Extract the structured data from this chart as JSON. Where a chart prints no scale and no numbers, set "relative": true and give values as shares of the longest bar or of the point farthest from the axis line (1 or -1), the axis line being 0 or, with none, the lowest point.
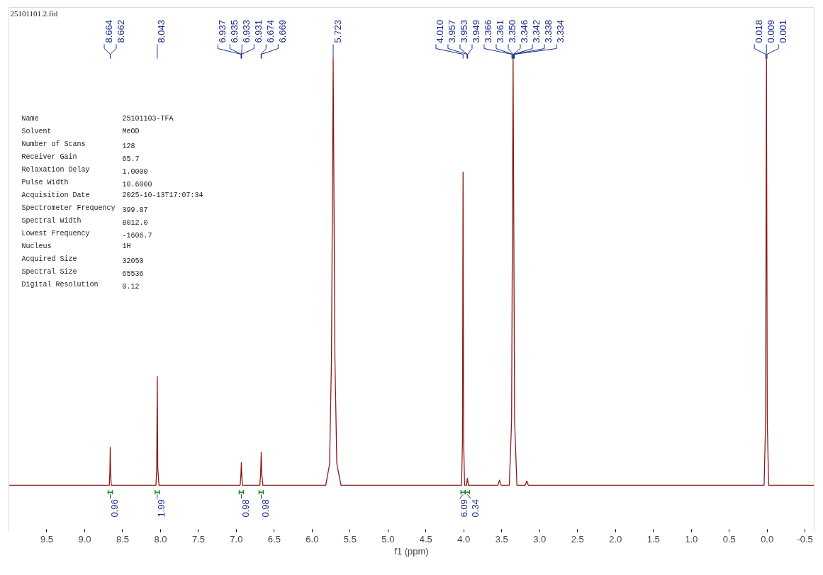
{
  "chart_data": {
    "type": "line",
    "relative": true,
    "xlabel": "f1 (ppm)",
    "xlim": [
      10.0,
      -0.62
    ],
    "xticks": [
      {
        "value": 9.5,
        "label": "9.5"
      },
      {
        "value": 9.0,
        "label": "9.0"
      },
      {
        "value": 8.5,
        "label": "8.5"
      },
      {
        "value": 8.0,
        "label": "8.0"
      },
      {
        "value": 7.5,
        "label": "7.5"
      },
      {
        "value": 7.0,
        "label": "7.0"
      },
      {
        "value": 6.5,
        "label": "6.5"
      },
      {
        "value": 6.0,
        "label": "6.0"
      },
      {
        "value": 5.5,
        "label": "5.5"
      },
      {
        "value": 5.0,
        "label": "5.0"
      },
      {
        "value": 4.5,
        "label": "4.5"
      },
      {
        "value": 4.0,
        "label": "4.0"
      },
      {
        "value": 3.5,
        "label": "3.5"
      },
      {
        "value": 3.0,
        "label": "3.0"
      },
      {
        "value": 2.5,
        "label": "2.5"
      },
      {
        "value": 2.0,
        "label": "2.0"
      },
      {
        "value": 1.5,
        "label": "1.5"
      },
      {
        "value": 1.0,
        "label": "1.0"
      },
      {
        "value": 0.5,
        "label": "0.5"
      },
      {
        "value": 0,
        "label": "0.0"
      },
      {
        "value": -0.5,
        "label": "-0.5"
      }
    ],
    "series": [
      {
        "color": "#8b1a1a",
        "x": [
          10.0,
          8.7,
          8.675,
          8.668,
          8.663,
          8.658,
          8.65,
          8.06,
          8.05,
          8.043,
          8.036,
          8.02,
          6.95,
          6.941,
          6.934,
          6.927,
          6.92,
          6.69,
          6.68,
          6.672,
          6.664,
          6.65,
          5.82,
          5.77,
          5.745,
          5.723,
          5.7,
          5.675,
          5.62,
          4.03,
          4.018,
          4.01,
          4.002,
          3.99,
          3.965,
          3.953,
          3.94,
          3.55,
          3.53,
          3.51,
          3.4,
          3.37,
          3.35,
          3.33,
          3.3,
          3.19,
          3.17,
          3.15,
          0.04,
          0.02,
          0.009,
          -0.002,
          -0.02,
          -0.62
        ],
        "values": [
          0,
          0,
          0,
          0.03,
          0.089,
          0.03,
          0,
          0,
          0.04,
          0.255,
          0.04,
          0,
          0,
          0.02,
          0.053,
          0.02,
          0,
          0,
          0.025,
          0.077,
          0.025,
          0,
          0,
          0.05,
          0.3,
          1,
          0.3,
          0.05,
          0,
          0,
          0.1,
          0.734,
          0.1,
          0,
          0,
          0.016,
          0,
          0,
          0.012,
          0,
          0,
          0.15,
          1,
          0.15,
          0,
          0,
          0.01,
          0,
          0,
          0.15,
          1,
          0.15,
          0,
          0
        ]
      }
    ],
    "annotations": [
      "25101101.2.fid",
      "Name\t25101103-TFA",
      "Solvent\tMeOD",
      "Number of Scans\t128",
      "Receiver Gain\t65.7",
      "Relaxation Delay\t1.0000",
      "Pulse Width\t10.6000",
      "Acquisition Date\t2025-10-13T17:07:34",
      "Spectrometer Frequency\t399.87",
      "Spectral Width\t8012.0",
      "Lowest Frequency\t-1606.7",
      "Nucleus\t1H",
      "Acquired Size\t32050",
      "Spectral Size\t65536",
      "Digital Resolution\t0.12",
      {
        "text": "8.664",
        "x": 8.664
      },
      {
        "text": "8.662",
        "x": 8.662
      },
      {
        "text": "8.043",
        "x": 8.043
      },
      {
        "text": "6.937",
        "x": 6.937
      },
      {
        "text": "6.935",
        "x": 6.935
      },
      {
        "text": "6.933",
        "x": 6.933
      },
      {
        "text": "6.931",
        "x": 6.931
      },
      {
        "text": "6.674",
        "x": 6.674
      },
      {
        "text": "6.669",
        "x": 6.669
      },
      {
        "text": "5.723",
        "x": 5.723
      },
      {
        "text": "4.010",
        "x": 4.01
      },
      {
        "text": "3.957",
        "x": 3.957
      },
      {
        "text": "3.953",
        "x": 3.953
      },
      {
        "text": "3.949",
        "x": 3.949
      },
      {
        "text": "3.366",
        "x": 3.366
      },
      {
        "text": "3.361",
        "x": 3.361
      },
      {
        "text": "3.350",
        "x": 3.35
      },
      {
        "text": "3.346",
        "x": 3.346
      },
      {
        "text": "3.342",
        "x": 3.342
      },
      {
        "text": "3.338",
        "x": 3.338
      },
      {
        "text": "3.334",
        "x": 3.334
      },
      {
        "text": "0.018",
        "x": 0.018
      },
      {
        "text": "0.009",
        "x": 0.009
      },
      {
        "text": "0.001",
        "x": 0.001
      },
      {
        "text": "0.96",
        "x": 8.663,
        "y": 0
      },
      {
        "text": "1.99",
        "x": 8.043,
        "y": 0
      },
      {
        "text": "0.98",
        "x": 6.934,
        "y": 0
      },
      {
        "text": "0.98",
        "x": 6.672,
        "y": 0
      },
      {
        "text": "6.09",
        "x": 4.01,
        "y": 0
      },
      {
        "text": "0.34",
        "x": 3.953,
        "y": 0
      }
    ]
  }
}
